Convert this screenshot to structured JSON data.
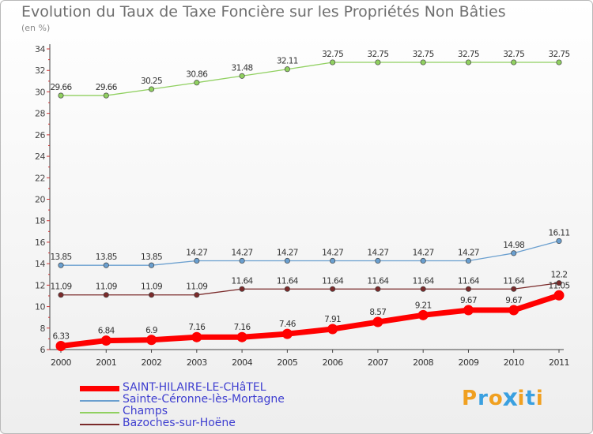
{
  "header": {
    "title": "Evolution du Taux de Taxe Foncière sur les Propriétés Non Bâties",
    "unit": "(en %)"
  },
  "brand": {
    "letters": [
      "P",
      "r",
      "o",
      "x",
      "i",
      "t",
      "i"
    ],
    "colors": [
      "#f0a020",
      "#3aa0e0",
      "#f0a020",
      "#3aa0e0",
      "#f0a020",
      "#3aa0e0",
      "#f0a020"
    ]
  },
  "chart_data": {
    "type": "line",
    "title": "Evolution du Taux de Taxe Foncière sur les Propriétés Non Bâties",
    "ylabel": "(en %)",
    "xlabel": "",
    "x": [
      "2000",
      "2001",
      "2002",
      "2003",
      "2004",
      "2005",
      "2006",
      "2007",
      "2008",
      "2009",
      "2010",
      "2011"
    ],
    "ylim": [
      6,
      34
    ],
    "yticks": [
      6,
      8,
      10,
      12,
      14,
      16,
      18,
      20,
      22,
      24,
      26,
      28,
      30,
      32,
      34
    ],
    "grid": false,
    "legend_position": "bottom-left",
    "series": [
      {
        "name": "SAINT-HILAIRE-LE-CHâTEL",
        "color": "#ff0000",
        "values": [
          6.33,
          6.84,
          6.9,
          7.16,
          7.16,
          7.46,
          7.91,
          8.57,
          9.21,
          9.67,
          9.67,
          11.05
        ],
        "labels": [
          "6.33",
          "6.84",
          "6.9",
          "7.16",
          "7.16",
          "7.46",
          "7.91",
          "8.57",
          "9.21",
          "9.67",
          "9.67",
          "11.05"
        ]
      },
      {
        "name": "Sainte-Céronne-lès-Mortagne",
        "color": "#6a9fcf",
        "values": [
          13.85,
          13.85,
          13.85,
          14.27,
          14.27,
          14.27,
          14.27,
          14.27,
          14.27,
          14.27,
          14.98,
          16.11
        ],
        "labels": [
          "13.85",
          "13.85",
          "13.85",
          "14.27",
          "14.27",
          "14.27",
          "14.27",
          "14.27",
          "14.27",
          "14.27",
          "14.98",
          "16.11"
        ]
      },
      {
        "name": "Champs",
        "color": "#90d060",
        "values": [
          29.66,
          29.66,
          30.25,
          30.86,
          31.48,
          32.11,
          32.75,
          32.75,
          32.75,
          32.75,
          32.75,
          32.75
        ],
        "labels": [
          "29.66",
          "29.66",
          "30.25",
          "30.86",
          "31.48",
          "32.11",
          "32.75",
          "32.75",
          "32.75",
          "32.75",
          "32.75",
          "32.75"
        ]
      },
      {
        "name": "Bazoches-sur-Hoëne",
        "color": "#7a2a2a",
        "values": [
          11.09,
          11.09,
          11.09,
          11.09,
          11.64,
          11.64,
          11.64,
          11.64,
          11.64,
          11.64,
          11.64,
          12.2
        ],
        "labels": [
          "11.09",
          "11.09",
          "11.09",
          "11.09",
          "11.64",
          "11.64",
          "11.64",
          "11.64",
          "11.64",
          "11.64",
          "11.64",
          "12.2"
        ]
      }
    ]
  }
}
